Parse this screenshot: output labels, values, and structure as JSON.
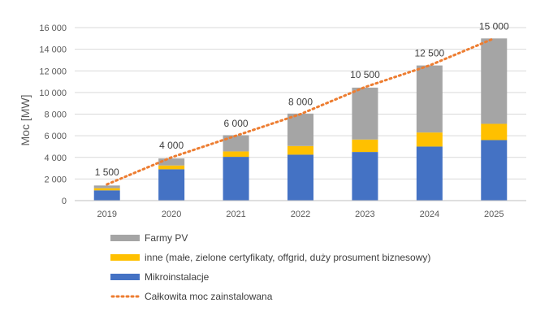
{
  "chart_data": {
    "type": "bar",
    "stacked": true,
    "categories": [
      "2019",
      "2020",
      "2021",
      "2022",
      "2023",
      "2024",
      "2025"
    ],
    "ylabel": "Moc [MW]",
    "ylim": [
      0,
      16000
    ],
    "yticks": [
      0,
      2000,
      4000,
      6000,
      8000,
      10000,
      12000,
      14000,
      16000
    ],
    "ytick_labels": [
      "0",
      "2 000",
      "4 000",
      "6 000",
      "8 000",
      "10 000",
      "12 000",
      "14 000",
      "16 000"
    ],
    "series": [
      {
        "name": "Mikroinstalacje",
        "color": "#4472C4",
        "values": [
          950,
          2900,
          4050,
          4250,
          4500,
          5000,
          5600
        ]
      },
      {
        "name": "inne (małe, zielone certyfikaty, offgrid, duży prosument biznesowy)",
        "color": "#FFC000",
        "values": [
          200,
          350,
          500,
          800,
          1150,
          1300,
          1500
        ]
      },
      {
        "name": "Farmy PV",
        "color": "#A5A5A5",
        "values": [
          250,
          650,
          1500,
          3000,
          4800,
          6200,
          7900
        ]
      }
    ],
    "line": {
      "name": "Całkowita moc zainstalowana",
      "color": "#ED7D31",
      "style": "dotted",
      "values": [
        1500,
        4000,
        6000,
        8000,
        10500,
        12500,
        15000
      ],
      "labels": [
        "1 500",
        "4 000",
        "6 000",
        "8 000",
        "10 500",
        "12 500",
        "15 000"
      ]
    },
    "grid": true,
    "legend_position": "bottom-left",
    "legend_order": [
      "Farmy PV",
      "inne (małe, zielone certyfikaty, offgrid, duży prosument biznesowy)",
      "Mikroinstalacje",
      "Całkowita moc zainstalowana"
    ]
  }
}
